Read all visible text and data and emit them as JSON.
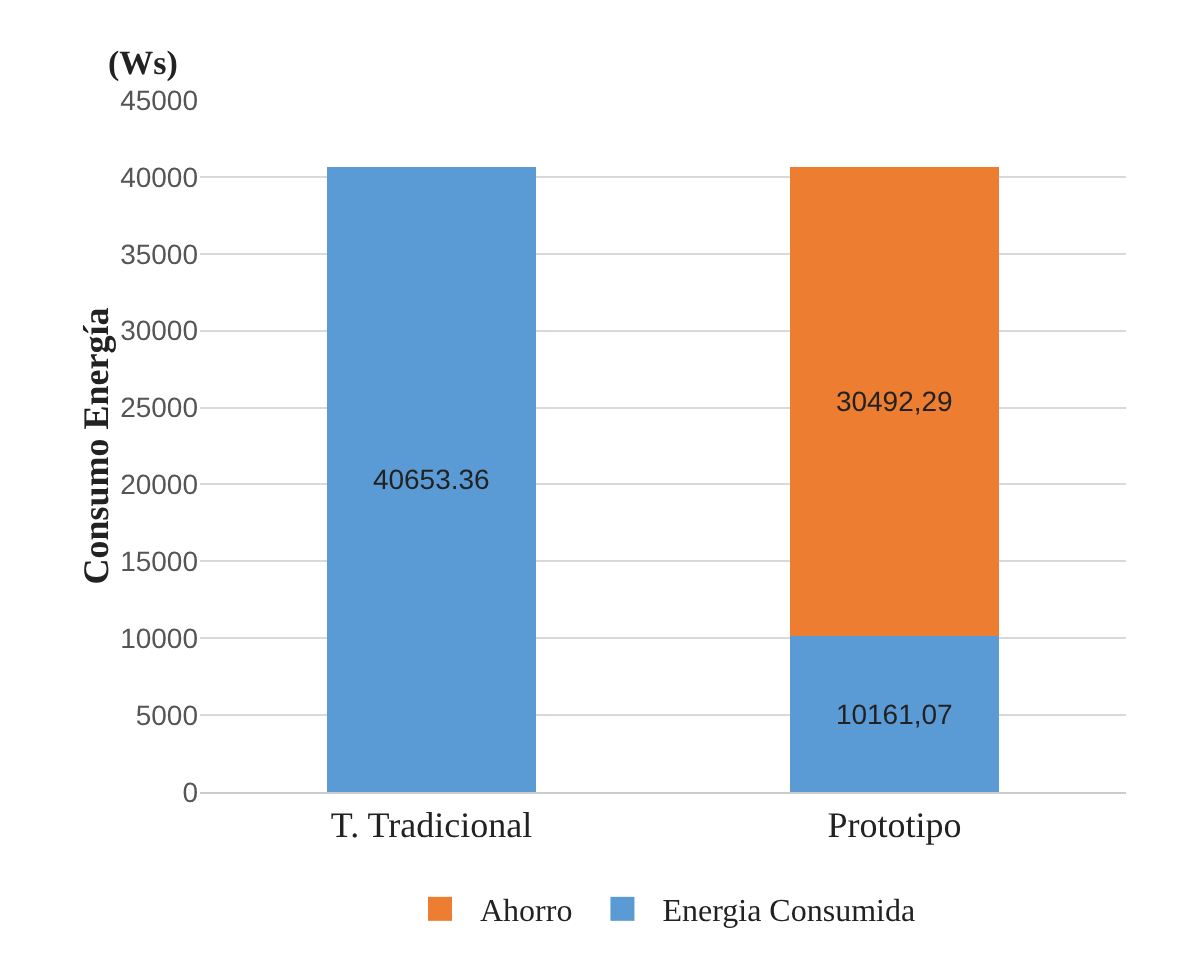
{
  "chart_data": {
    "type": "bar",
    "stacked": true,
    "ylabel": "Consumo Energía",
    "annotations": [
      "(Ws)"
    ],
    "categories": [
      "T. Tradicional",
      "Prototipo"
    ],
    "series": [
      {
        "name": "Energia Consumida",
        "color": "#5b9bd5",
        "values": [
          40653.36,
          10161.07
        ],
        "value_labels": [
          "40653.36",
          "10161,07"
        ]
      },
      {
        "name": "Ahorro",
        "color": "#ed7d31",
        "values": [
          null,
          30492.29
        ],
        "value_labels": [
          null,
          "30492,29"
        ]
      }
    ],
    "ylim": [
      0,
      45000
    ],
    "yticks": [
      0,
      5000,
      10000,
      15000,
      20000,
      25000,
      30000,
      35000,
      40000,
      45000
    ],
    "grid": "y",
    "legend": "bottom"
  }
}
